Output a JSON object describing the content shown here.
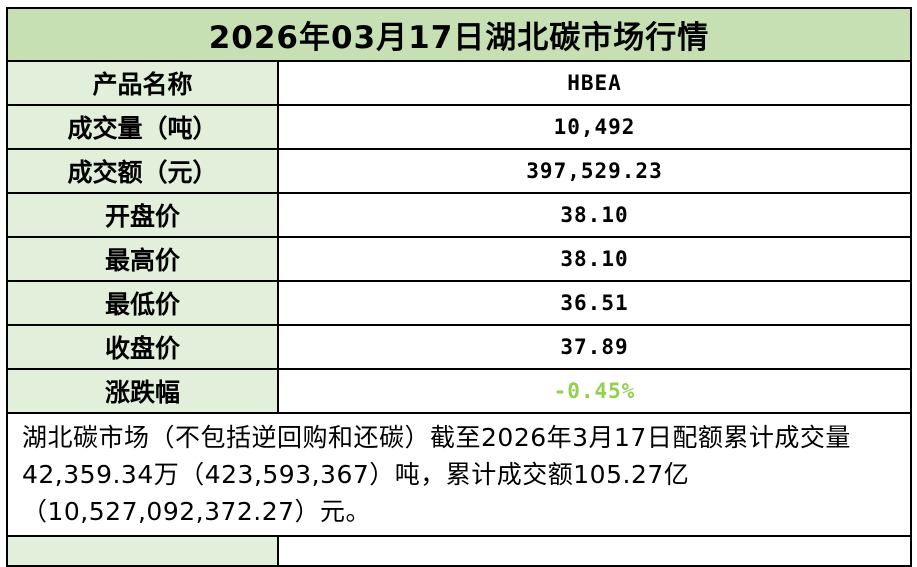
{
  "title": "2026年03月17日湖北碳市场行情",
  "table": {
    "rows": [
      {
        "label": "产品名称",
        "value": "HBEA"
      },
      {
        "label": "成交量（吨）",
        "value": "10,492"
      },
      {
        "label": "成交额（元）",
        "value": "397,529.23"
      },
      {
        "label": "开盘价",
        "value": "38.10"
      },
      {
        "label": "最高价",
        "value": "38.10"
      },
      {
        "label": "最低价",
        "value": "36.51"
      },
      {
        "label": "收盘价",
        "value": "37.89"
      },
      {
        "label": "涨跌幅",
        "value": "-0.45%"
      }
    ]
  },
  "footer_note": "湖北碳市场（不包括逆回购和还碳）截至2026年3月17日配额累计成交量42,359.34万（423,593,367）吨，累计成交额105.27亿（10,527,092,372.27）元。",
  "colors": {
    "title_bg": "#c6e0b4",
    "label_bg": "#e2efda",
    "negative_change_green": "#92d050",
    "border": "#000000"
  },
  "chart_data": {
    "type": "table",
    "title": "2026年03月17日湖北碳市场行情",
    "product": "HBEA",
    "columns": [
      "产品名称",
      "HBEA"
    ],
    "rows": [
      [
        "成交量（吨）",
        "10,492"
      ],
      [
        "成交额（元）",
        "397,529.23"
      ],
      [
        "开盘价",
        "38.10"
      ],
      [
        "最高价",
        "38.10"
      ],
      [
        "最低价",
        "36.51"
      ],
      [
        "收盘价",
        "37.89"
      ],
      [
        "涨跌幅",
        "-0.45%"
      ]
    ],
    "values": {
      "volume_tons": 10492,
      "turnover_yuan": 397529.23,
      "open": 38.1,
      "high": 38.1,
      "low": 36.51,
      "close": 37.89,
      "change_pct": -0.45,
      "cumulative_volume_tons": 423593367,
      "cumulative_volume_wan_tons": 42359.34,
      "cumulative_turnover_yuan": 10527092372.27,
      "cumulative_turnover_yi_yuan": 105.27
    },
    "note": "湖北碳市场（不包括逆回购和还碳）截至2026年3月17日配额累计成交量42,359.34万（423,593,367）吨，累计成交额105.27亿（10,527,092,372.27）元。"
  }
}
